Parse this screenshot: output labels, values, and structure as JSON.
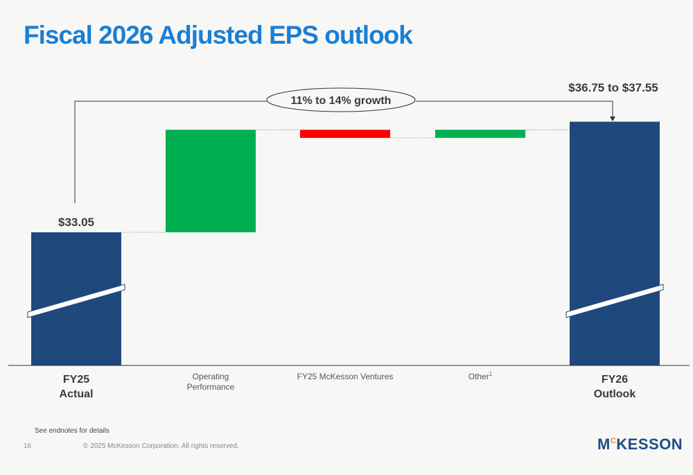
{
  "title": "Fiscal 2026 Adjusted EPS outlook",
  "chart_data": {
    "type": "bar",
    "subtype": "waterfall",
    "title": "Fiscal 2026 Adjusted EPS outlook",
    "categories": [
      {
        "line1": "FY25",
        "line2": "Actual",
        "style": "total"
      },
      {
        "line1": "Operating",
        "line2": "Performance",
        "style": "step"
      },
      {
        "line1": "FY25 McKesson Ventures",
        "line2": "",
        "style": "step"
      },
      {
        "line1": "Other",
        "sup": "1",
        "line2": "",
        "style": "step"
      },
      {
        "line1": "FY26",
        "line2": "Outlook",
        "style": "total"
      }
    ],
    "values": [
      33.05,
      3.8,
      -0.3,
      0.3,
      37.15
    ],
    "value_labels": [
      "$33.05",
      "",
      "",
      "",
      "$36.75 to $37.55"
    ],
    "annotation": "11% to 14% growth",
    "colors": {
      "total": "#1f497d",
      "increase": "#00b050",
      "decrease": "#ff0000",
      "title": "#1a7fd4"
    },
    "axis_broken": true,
    "grid": false
  },
  "footer": {
    "note": "See endnotes for details",
    "page": "16",
    "copyright": "© 2025 McKesson Corporation. All rights reserved.",
    "logo_main": "MCKESSON",
    "logo_text_1": "M",
    "logo_text_sup": "C",
    "logo_text_2": "KESSON"
  }
}
